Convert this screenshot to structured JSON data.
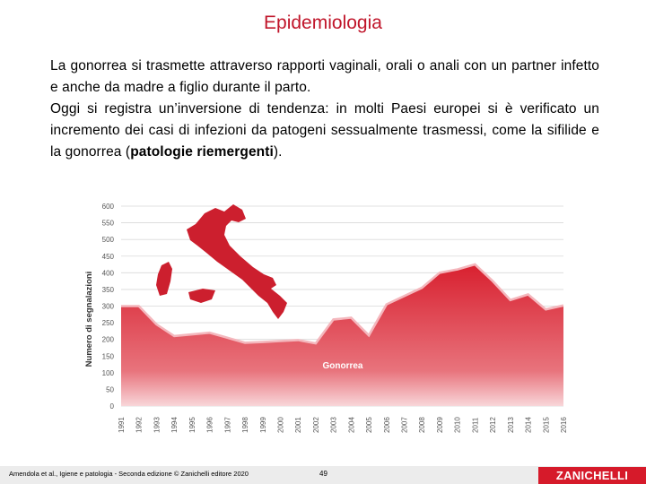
{
  "slide": {
    "title": "Epidemiologia",
    "para1": "La gonorrea si trasmette attraverso rapporti vaginali, orali o anali con un partner infetto e anche da madre a figlio durante il parto.",
    "para2_pre": "Oggi si registra un’inversione di tendenza: in molti Paesi europei si è verificato un incremento dei casi di infezioni da patogeni sessualmente trasmessi, come la sifilide e la gonorrea (",
    "para2_bold": "patologie riemergenti",
    "para2_post": ").",
    "footer_left": "Amendola et al., Igiene e patologia - Seconda edizione © Zanichelli editore 2020",
    "page_number": "49",
    "brand": "ZANICHELLI"
  },
  "colors": {
    "title": "#c0152a",
    "chart_fill": "#d8202f",
    "chart_fill_light": "#f3b3b8",
    "map": "#cc1f2e",
    "brand": "#d61a2a"
  },
  "chart_data": {
    "type": "area",
    "ylabel": "Numero di segnalazioni",
    "series_label": "Gonorrea",
    "ylim": [
      0,
      600
    ],
    "yticks": [
      0,
      50,
      100,
      150,
      200,
      250,
      300,
      350,
      400,
      450,
      500,
      550,
      600
    ],
    "grid": true,
    "x": [
      "1991",
      "1992",
      "1993",
      "1994",
      "1995",
      "1996",
      "1997",
      "1998",
      "1999",
      "2000",
      "2001",
      "2002",
      "2003",
      "2004",
      "2005",
      "2006",
      "2007",
      "2008",
      "2009",
      "2010",
      "2011",
      "2012",
      "2013",
      "2014",
      "2015",
      "2016"
    ],
    "values": [
      300,
      300,
      245,
      210,
      215,
      220,
      205,
      190,
      192,
      195,
      198,
      188,
      260,
      265,
      212,
      305,
      330,
      355,
      400,
      410,
      425,
      375,
      318,
      335,
      290,
      302
    ]
  }
}
